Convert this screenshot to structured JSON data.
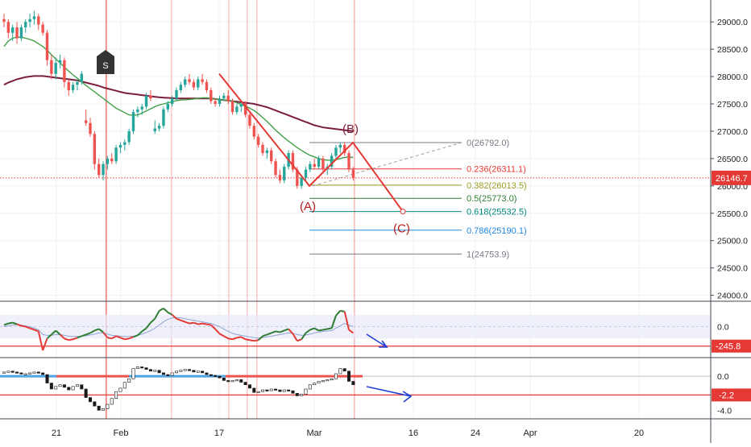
{
  "chart_data": {
    "type": "candlestick",
    "main": {
      "price_axis_ticks": [
        "29000.0",
        "28500.0",
        "28000.0",
        "27500.0",
        "27000.0",
        "26500.0",
        "26000.0",
        "25500.0",
        "25000.0",
        "24500.0",
        "24000.0"
      ],
      "price_axis_values": [
        29000,
        28500,
        28000,
        27500,
        27000,
        26500,
        26000,
        25500,
        25000,
        24500,
        24000
      ],
      "ylim": [
        23950,
        29400
      ],
      "last_price_label": "26146.7",
      "last_price": 26146.7,
      "candles": [
        [
          29050,
          29150,
          28900,
          29000
        ],
        [
          29000,
          29050,
          28700,
          28800
        ],
        [
          28800,
          28950,
          28650,
          28900
        ],
        [
          28900,
          29000,
          28600,
          28700
        ],
        [
          28700,
          28950,
          28650,
          28900
        ],
        [
          28900,
          29050,
          28800,
          29000
        ],
        [
          29000,
          29150,
          28900,
          29050
        ],
        [
          29050,
          29200,
          28950,
          29100
        ],
        [
          29100,
          29150,
          28850,
          28950
        ],
        [
          28950,
          29000,
          28750,
          28800
        ],
        [
          28800,
          28850,
          28200,
          28300
        ],
        [
          28300,
          28400,
          27950,
          28050
        ],
        [
          28050,
          28350,
          27950,
          28250
        ],
        [
          28250,
          28400,
          28150,
          28300
        ],
        [
          28300,
          28350,
          27800,
          27900
        ],
        [
          27900,
          27950,
          27650,
          27750
        ],
        [
          27750,
          27900,
          27700,
          27850
        ],
        [
          27850,
          27950,
          27750,
          27900
        ],
        [
          27900,
          28100,
          27850,
          28050
        ],
        [
          27200,
          27400,
          27100,
          27150
        ],
        [
          27150,
          27250,
          26900,
          26950
        ],
        [
          26950,
          27000,
          26300,
          26400
        ],
        [
          26400,
          26500,
          26150,
          26200
        ],
        [
          26200,
          26450,
          26100,
          26400
        ],
        [
          26400,
          26550,
          26300,
          26500
        ],
        [
          26500,
          26600,
          26400,
          26450
        ],
        [
          26450,
          26750,
          26400,
          26700
        ],
        [
          26700,
          26800,
          26600,
          26750
        ],
        [
          26750,
          26850,
          26650,
          26800
        ],
        [
          26800,
          27050,
          26750,
          27000
        ],
        [
          27000,
          27400,
          26950,
          27350
        ],
        [
          27350,
          27450,
          27250,
          27400
        ],
        [
          27400,
          27500,
          27300,
          27450
        ],
        [
          27450,
          27700,
          27400,
          27650
        ],
        [
          27650,
          27750,
          27550,
          27600
        ],
        [
          27000,
          27200,
          26950,
          27050
        ],
        [
          27050,
          27150,
          27000,
          27100
        ],
        [
          27100,
          27450,
          27050,
          27400
        ],
        [
          27400,
          27550,
          27350,
          27500
        ],
        [
          27500,
          27650,
          27450,
          27600
        ],
        [
          27600,
          27800,
          27550,
          27750
        ],
        [
          27750,
          27900,
          27700,
          27850
        ],
        [
          27850,
          28000,
          27800,
          27950
        ],
        [
          27950,
          28050,
          27850,
          27900
        ],
        [
          27900,
          27950,
          27750,
          27800
        ],
        [
          27800,
          28000,
          27750,
          27950
        ],
        [
          27950,
          28050,
          27850,
          27900
        ],
        [
          27900,
          27950,
          27700,
          27750
        ],
        [
          27750,
          27800,
          27500,
          27550
        ],
        [
          27550,
          27600,
          27450,
          27500
        ],
        [
          27500,
          27650,
          27450,
          27600
        ],
        [
          27600,
          27700,
          27550,
          27650
        ],
        [
          27650,
          27750,
          27500,
          27550
        ],
        [
          27550,
          27600,
          27300,
          27350
        ],
        [
          27350,
          27500,
          27300,
          27450
        ],
        [
          27450,
          27550,
          27350,
          27500
        ],
        [
          27500,
          27550,
          27250,
          27300
        ],
        [
          27300,
          27350,
          27050,
          27100
        ],
        [
          27100,
          27150,
          26850,
          26900
        ],
        [
          26900,
          26950,
          26700,
          26750
        ],
        [
          26750,
          26800,
          26550,
          26600
        ],
        [
          26600,
          26700,
          26500,
          26650
        ],
        [
          26650,
          26700,
          26400,
          26450
        ],
        [
          26450,
          26500,
          26150,
          26200
        ],
        [
          26200,
          26300,
          26050,
          26100
        ],
        [
          26100,
          26400,
          26050,
          26350
        ],
        [
          26350,
          26650,
          26300,
          26600
        ],
        [
          26600,
          26650,
          26250,
          26300
        ],
        [
          26300,
          26350,
          25950,
          26000
        ],
        [
          26000,
          26200,
          25950,
          26150
        ],
        [
          26150,
          26350,
          26100,
          26300
        ],
        [
          26300,
          26450,
          26250,
          26400
        ],
        [
          26400,
          26500,
          26300,
          26350
        ],
        [
          26350,
          26550,
          26300,
          26500
        ],
        [
          26500,
          26550,
          26250,
          26300
        ],
        [
          26300,
          26400,
          26200,
          26350
        ],
        [
          26350,
          26600,
          26300,
          26550
        ],
        [
          26550,
          26750,
          26500,
          26700
        ],
        [
          26700,
          26800,
          26600,
          26750
        ],
        [
          26750,
          26800,
          26550,
          26600
        ],
        [
          26600,
          26650,
          26250,
          26300
        ],
        [
          26300,
          26350,
          26100,
          26146.7
        ]
      ],
      "ma_green": [
        28550,
        28650,
        28700,
        28720,
        28720,
        28700,
        28680,
        28650,
        28600,
        28550,
        28480,
        28400,
        28320,
        28250,
        28170,
        28100,
        28030,
        27970,
        27900,
        27840,
        27780,
        27720,
        27660,
        27600,
        27540,
        27480,
        27420,
        27380,
        27340,
        27300,
        27290,
        27300,
        27330,
        27370,
        27410,
        27450,
        27480,
        27500,
        27520,
        27540,
        27560,
        27570,
        27575,
        27580,
        27590,
        27600,
        27610,
        27610,
        27600,
        27590,
        27580,
        27570,
        27560,
        27550,
        27520,
        27490,
        27460,
        27420,
        27380,
        27320,
        27250,
        27180,
        27100,
        27020,
        26950,
        26880,
        26820,
        26760,
        26700,
        26650,
        26600,
        26560,
        26530,
        26500,
        26480,
        26470,
        26470,
        26480,
        26500,
        26520,
        26530,
        26520
      ],
      "ma_maroon": [
        27850,
        27890,
        27920,
        27950,
        27970,
        27990,
        28000,
        28010,
        28010,
        28010,
        28000,
        27990,
        27980,
        27970,
        27960,
        27950,
        27940,
        27930,
        27910,
        27890,
        27870,
        27850,
        27830,
        27800,
        27780,
        27760,
        27740,
        27720,
        27700,
        27690,
        27680,
        27670,
        27660,
        27650,
        27640,
        27630,
        27620,
        27615,
        27610,
        27605,
        27600,
        27600,
        27600,
        27600,
        27600,
        27600,
        27600,
        27600,
        27600,
        27590,
        27580,
        27570,
        27560,
        27550,
        27540,
        27530,
        27520,
        27510,
        27500,
        27480,
        27460,
        27440,
        27410,
        27380,
        27350,
        27320,
        27290,
        27260,
        27230,
        27200,
        27170,
        27140,
        27110,
        27090,
        27070,
        27060,
        27050,
        27040,
        27030,
        27020,
        27010,
        27000
      ],
      "elliott_labels": [
        "(A)",
        "(B)",
        "(C)"
      ],
      "signal_label": "S",
      "fibonacci": [
        {
          "label": "0(26792.0)",
          "value": 26792.0,
          "color": "#787b86"
        },
        {
          "label": "0.236(26311.1)",
          "value": 26311.1,
          "color": "#e53935"
        },
        {
          "label": "0.382(26013.5)",
          "value": 26013.5,
          "color": "#9e9d24"
        },
        {
          "label": "0.5(25773.0)",
          "value": 25773.0,
          "color": "#2e7d32"
        },
        {
          "label": "0.618(25532.5)",
          "value": 25532.5,
          "color": "#00897b"
        },
        {
          "label": "0.786(25190.1)",
          "value": 25190.1,
          "color": "#1e88e5"
        },
        {
          "label": "1(24753.9)",
          "value": 24753.9,
          "color": "#787b86"
        }
      ]
    },
    "indicator1": {
      "axis_ticks": [
        "0.0"
      ],
      "axis_values": [
        0
      ],
      "level_label": "-245.8",
      "level_value": -245.8,
      "ylim": [
        -350,
        300
      ],
      "values": [
        20,
        40,
        50,
        30,
        10,
        0,
        -20,
        -40,
        -60,
        -300,
        -150,
        -100,
        -50,
        -100,
        -150,
        -170,
        -160,
        -140,
        -120,
        -100,
        -80,
        -50,
        -30,
        -70,
        -140,
        -150,
        -120,
        -140,
        -160,
        -150,
        -130,
        -110,
        -60,
        -20,
        50,
        100,
        200,
        230,
        180,
        150,
        100,
        80,
        60,
        40,
        50,
        30,
        40,
        30,
        20,
        -30,
        -90,
        -120,
        -150,
        -160,
        -140,
        -130,
        -160,
        -170,
        -180,
        -170,
        -120,
        -100,
        -80,
        -60,
        -70,
        -50,
        -30,
        -90,
        -180,
        -160,
        -80,
        -40,
        -20,
        -50,
        -40,
        -30,
        -20,
        140,
        200,
        190,
        -40,
        -80
      ],
      "signal": [
        0,
        10,
        20,
        25,
        20,
        10,
        0,
        -20,
        -40,
        -100,
        -110,
        -110,
        -100,
        -100,
        -110,
        -120,
        -125,
        -125,
        -120,
        -115,
        -105,
        -95,
        -80,
        -80,
        -95,
        -110,
        -115,
        -120,
        -125,
        -125,
        -120,
        -110,
        -95,
        -75,
        -50,
        -20,
        20,
        60,
        90,
        110,
        115,
        110,
        100,
        90,
        80,
        70,
        60,
        50,
        40,
        20,
        0,
        -30,
        -60,
        -85,
        -100,
        -110,
        -120,
        -130,
        -140,
        -145,
        -140,
        -130,
        -120,
        -110,
        -100,
        -90,
        -80,
        -85,
        -100,
        -110,
        -105,
        -95,
        -80,
        -70,
        -60,
        -55,
        -50,
        -20,
        10,
        40,
        20,
        0
      ]
    },
    "indicator2": {
      "axis_ticks": [
        "0.0",
        "-4.0"
      ],
      "axis_values": [
        0,
        -4
      ],
      "level_label": "-2.2",
      "level_value": -2.2,
      "ylim": [
        -5,
        2
      ],
      "values": [
        0.5,
        0.6,
        0.5,
        0.4,
        0.3,
        0.3,
        0.4,
        0.5,
        0.4,
        0.2,
        -0.8,
        -1.5,
        -1.2,
        -1.0,
        -1.3,
        -1.6,
        -1.2,
        -1.0,
        -1.5,
        -2.5,
        -3.0,
        -3.5,
        -4.0,
        -3.8,
        -3.3,
        -2.6,
        -1.8,
        -1.4,
        -0.7,
        -0.3,
        0.9,
        1.1,
        1.0,
        0.8,
        0.6,
        0.7,
        0.4,
        0.2,
        0.1,
        0.4,
        0.6,
        0.7,
        0.8,
        0.7,
        0.5,
        0.6,
        0.4,
        0.2,
        0.1,
        0.0,
        -0.2,
        -0.5,
        -0.6,
        -0.5,
        -0.4,
        -0.7,
        -1.0,
        -1.4,
        -1.9,
        -1.8,
        -1.6,
        -1.7,
        -1.5,
        -1.6,
        -1.8,
        -1.6,
        -1.7,
        -2.0,
        -2.3,
        -2.1,
        -1.5,
        -1.0,
        -0.8,
        -0.6,
        -0.5,
        -0.4,
        -0.3,
        0.3,
        0.9,
        0.6,
        -0.6,
        -1.0
      ]
    },
    "x_tick_labels": [
      "21",
      "Feb",
      "17",
      "Mar",
      "16",
      "24",
      "Apr",
      "20"
    ]
  }
}
